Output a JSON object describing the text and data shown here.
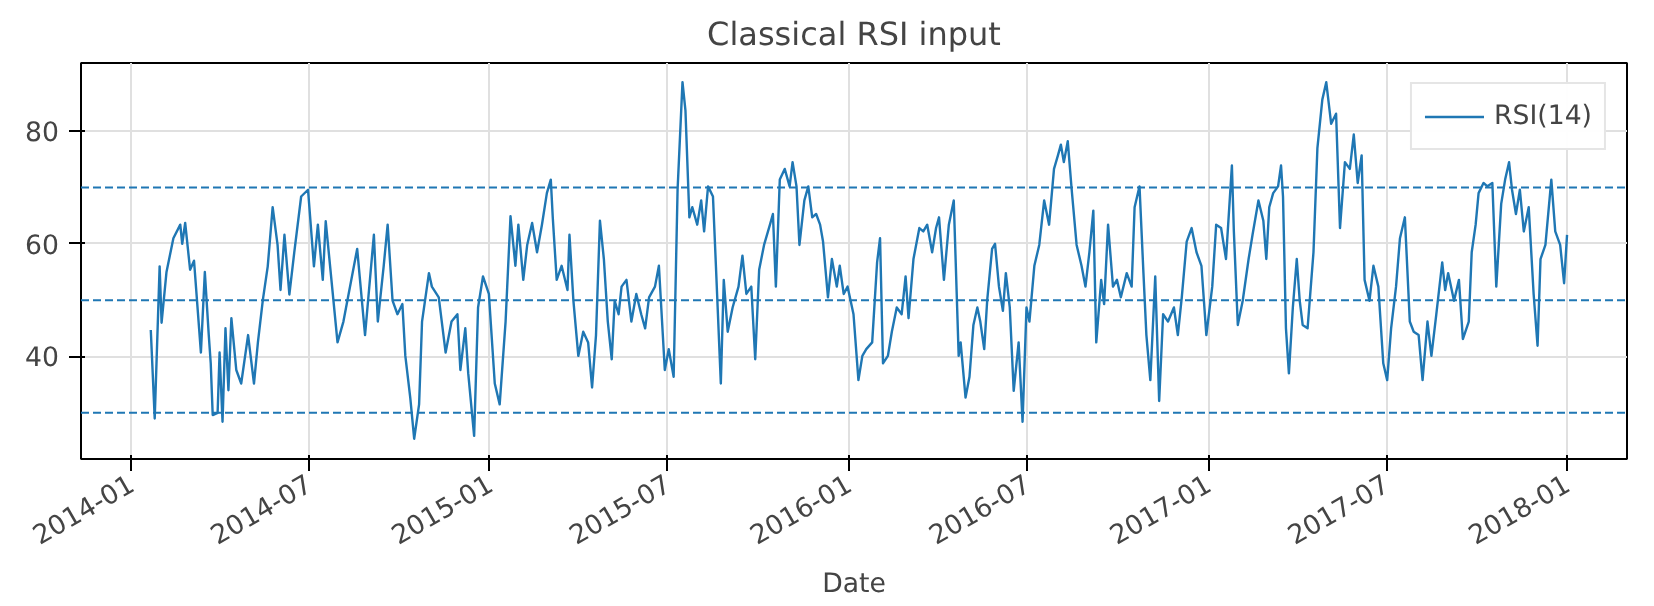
{
  "chart_data": {
    "type": "line",
    "title": "Classical RSI input",
    "xlabel": "Date",
    "xlim": [
      "2013-11-11",
      "2018-03-03"
    ],
    "ylim": [
      21.8,
      92.1
    ],
    "xticks": [
      "2014-01",
      "2014-07",
      "2015-01",
      "2015-07",
      "2016-01",
      "2016-07",
      "2017-01",
      "2017-07",
      "2018-01"
    ],
    "yticks": [
      40,
      60,
      80
    ],
    "grid": true,
    "legend": "top right",
    "marker": "none",
    "line_style": "solid",
    "ref_lines": [
      {
        "axis": "y",
        "value": 30,
        "color": "#1f77b4",
        "line_style": "dashed"
      },
      {
        "axis": "y",
        "value": 50,
        "color": "#1f77b4",
        "line_style": "dashed"
      },
      {
        "axis": "y",
        "value": 70,
        "color": "#1f77b4",
        "line_style": "dashed"
      }
    ],
    "series": [
      {
        "name": "RSI(14)",
        "color": "#1f77b4",
        "x": [
          "2014-01-21",
          "2014-01-25",
          "2014-01-30",
          "2014-02-01",
          "2014-02-06",
          "2014-02-13",
          "2014-02-20",
          "2014-02-22",
          "2014-02-25",
          "2014-03-02",
          "2014-03-06",
          "2014-03-13",
          "2014-03-17",
          "2014-03-21",
          "2014-03-23",
          "2014-03-25",
          "2014-03-30",
          "2014-04-01",
          "2014-04-04",
          "2014-04-07",
          "2014-04-10",
          "2014-04-13",
          "2014-04-18",
          "2014-04-23",
          "2014-04-30",
          "2014-05-06",
          "2014-05-10",
          "2014-05-15",
          "2014-05-20",
          "2014-05-25",
          "2014-05-30",
          "2014-06-02",
          "2014-06-06",
          "2014-06-11",
          "2014-06-16",
          "2014-06-23",
          "2014-06-30",
          "2014-07-06",
          "2014-07-10",
          "2014-07-15",
          "2014-07-18",
          "2014-07-30",
          "2014-08-05",
          "2014-08-19",
          "2014-08-27",
          "2014-09-05",
          "2014-09-09",
          "2014-09-15",
          "2014-09-19",
          "2014-09-24",
          "2014-09-29",
          "2014-10-04",
          "2014-10-07",
          "2014-10-12",
          "2014-10-16",
          "2014-10-21",
          "2014-10-24",
          "2014-10-31",
          "2014-11-03",
          "2014-11-10",
          "2014-11-17",
          "2014-11-23",
          "2014-11-29",
          "2014-12-02",
          "2014-12-07",
          "2014-12-10",
          "2014-12-16",
          "2014-12-20",
          "2014-12-25",
          "2014-12-31",
          "2015-01-06",
          "2015-01-11",
          "2015-01-17",
          "2015-01-22",
          "2015-01-27",
          "2015-01-30",
          "2015-02-04",
          "2015-02-08",
          "2015-02-13",
          "2015-02-18",
          "2015-02-23",
          "2015-02-28",
          "2015-03-04",
          "2015-03-06",
          "2015-03-10",
          "2015-03-15",
          "2015-03-21",
          "2015-03-23",
          "2015-03-27",
          "2015-04-01",
          "2015-04-06",
          "2015-04-11",
          "2015-04-15",
          "2015-04-19",
          "2015-04-23",
          "2015-04-27",
          "2015-05-01",
          "2015-05-05",
          "2015-05-08",
          "2015-05-12",
          "2015-05-15",
          "2015-05-20",
          "2015-05-25",
          "2015-05-30",
          "2015-06-04",
          "2015-06-08",
          "2015-06-12",
          "2015-06-18",
          "2015-06-22",
          "2015-06-28",
          "2015-07-02",
          "2015-07-07",
          "2015-07-11",
          "2015-07-16",
          "2015-07-19",
          "2015-07-23",
          "2015-07-26",
          "2015-07-31",
          "2015-08-04",
          "2015-08-07",
          "2015-08-11",
          "2015-08-16",
          "2015-08-19",
          "2015-08-24",
          "2015-08-27",
          "2015-08-31",
          "2015-09-05",
          "2015-09-11",
          "2015-09-15",
          "2015-09-19",
          "2015-09-24",
          "2015-09-28",
          "2015-10-02",
          "2015-10-07",
          "2015-10-13",
          "2015-10-16",
          "2015-10-19",
          "2015-10-23",
          "2015-10-28",
          "2015-11-02",
          "2015-11-05",
          "2015-11-09",
          "2015-11-12",
          "2015-11-17",
          "2015-11-21",
          "2015-11-25",
          "2015-11-29",
          "2015-12-03",
          "2015-12-06",
          "2015-12-11",
          "2015-12-15",
          "2015-12-20",
          "2015-12-23",
          "2015-12-27",
          "2015-12-31",
          "2016-01-06",
          "2016-01-11",
          "2016-01-15",
          "2016-01-19",
          "2016-01-25",
          "2016-01-30",
          "2016-02-02",
          "2016-02-05",
          "2016-02-10",
          "2016-02-14",
          "2016-02-19",
          "2016-02-24",
          "2016-02-28",
          "2016-03-02",
          "2016-03-07",
          "2016-03-13",
          "2016-03-17",
          "2016-03-21",
          "2016-03-26",
          "2016-03-30",
          "2016-04-02",
          "2016-04-07",
          "2016-04-12",
          "2016-04-17",
          "2016-04-22",
          "2016-04-24",
          "2016-04-29",
          "2016-05-03",
          "2016-05-07",
          "2016-05-11",
          "2016-05-14",
          "2016-05-18",
          "2016-05-21",
          "2016-05-26",
          "2016-05-29",
          "2016-06-02",
          "2016-06-06",
          "2016-06-09",
          "2016-06-13",
          "2016-06-17",
          "2016-06-22",
          "2016-06-26",
          "2016-06-30",
          "2016-07-03",
          "2016-07-08",
          "2016-07-13",
          "2016-07-18",
          "2016-07-23",
          "2016-07-28",
          "2016-08-01",
          "2016-08-04",
          "2016-08-07",
          "2016-08-11",
          "2016-08-15",
          "2016-08-20",
          "2016-08-25",
          "2016-08-29",
          "2016-09-02",
          "2016-09-06",
          "2016-09-09",
          "2016-09-14",
          "2016-09-17",
          "2016-09-21",
          "2016-09-26",
          "2016-09-30",
          "2016-10-04",
          "2016-10-10",
          "2016-10-15",
          "2016-10-18",
          "2016-10-23",
          "2016-10-27",
          "2016-10-30",
          "2016-11-03",
          "2016-11-08",
          "2016-11-12",
          "2016-11-16",
          "2016-11-21",
          "2016-11-27",
          "2016-12-01",
          "2016-12-05",
          "2016-12-10",
          "2016-12-15",
          "2016-12-20",
          "2016-12-25",
          "2016-12-30",
          "2017-01-05",
          "2017-01-09",
          "2017-01-14",
          "2017-01-19",
          "2017-01-25",
          "2017-01-27",
          "2017-01-31",
          "2017-02-05",
          "2017-02-11",
          "2017-02-15",
          "2017-02-21",
          "2017-02-26",
          "2017-03-01",
          "2017-03-04",
          "2017-03-08",
          "2017-03-13",
          "2017-03-16",
          "2017-03-18",
          "2017-03-21",
          "2017-03-24",
          "2017-03-28",
          "2017-04-01",
          "2017-04-04",
          "2017-04-07",
          "2017-04-12",
          "2017-04-18",
          "2017-04-22",
          "2017-04-27",
          "2017-05-01",
          "2017-05-06",
          "2017-05-11",
          "2017-05-15",
          "2017-05-20",
          "2017-05-25",
          "2017-05-29",
          "2017-06-02",
          "2017-06-06",
          "2017-06-09",
          "2017-06-14",
          "2017-06-18",
          "2017-06-23",
          "2017-06-28",
          "2017-07-02",
          "2017-07-06",
          "2017-07-11",
          "2017-07-15",
          "2017-07-20",
          "2017-07-25",
          "2017-07-29",
          "2017-08-03",
          "2017-08-07",
          "2017-08-12",
          "2017-08-16",
          "2017-08-21",
          "2017-08-27",
          "2017-08-30",
          "2017-09-02",
          "2017-09-08",
          "2017-09-13",
          "2017-09-17",
          "2017-09-23",
          "2017-09-26",
          "2017-09-30",
          "2017-10-03",
          "2017-10-08",
          "2017-10-12",
          "2017-10-17",
          "2017-10-21",
          "2017-10-26",
          "2017-10-30",
          "2017-11-03",
          "2017-11-06",
          "2017-11-10",
          "2017-11-14",
          "2017-11-18",
          "2017-11-23",
          "2017-11-28",
          "2017-12-02",
          "2017-12-05",
          "2017-12-10",
          "2017-12-16",
          "2017-12-20",
          "2017-12-25",
          "2017-12-29",
          "2018-01-01"
        ],
        "values": [
          44.7,
          29,
          56,
          46,
          55,
          61,
          63.4,
          60,
          63.7,
          55.4,
          57,
          40.7,
          55,
          43.8,
          38.8,
          29.6,
          30,
          40.7,
          28.4,
          45,
          34,
          46.8,
          37.6,
          35.2,
          43.8,
          35.2,
          42.5,
          50,
          56,
          66.5,
          59.8,
          51.8,
          61.6,
          51,
          58.5,
          68.4,
          69.6,
          56,
          63.4,
          53.6,
          64,
          42.5,
          46.2,
          59.1,
          43.8,
          61.6,
          46.2,
          56.1,
          63.4,
          49.9,
          47.5,
          49.3,
          40.1,
          32.7,
          25.4,
          31.5,
          46.2,
          54.8,
          52.4,
          50.5,
          40.7,
          46.2,
          47.5,
          37.6,
          45,
          37,
          25.9,
          48.7,
          54.2,
          51.1,
          35.2,
          31.5,
          46.2,
          64.9,
          56.1,
          63.4,
          53.6,
          59.8,
          63.7,
          58.5,
          63.4,
          69,
          71.4,
          64.7,
          53.6,
          56.1,
          51.8,
          61.6,
          49.9,
          40.1,
          44.4,
          42.5,
          34.5,
          43.8,
          64.1,
          57.3,
          46.2,
          39.5,
          49.9,
          47.5,
          52.4,
          53.6,
          46.2,
          51.1,
          47.5,
          45,
          50.5,
          52.4,
          56.1,
          37.6,
          41.3,
          36.4,
          69.6,
          88.7,
          83.7,
          64.7,
          66.5,
          63.4,
          67.7,
          62.2,
          70.2,
          68.4,
          56.1,
          35.2,
          53.6,
          44.4,
          48.7,
          52.4,
          57.9,
          51.1,
          52.4,
          39.5,
          55.4,
          59.8,
          63.4,
          65.3,
          52.4,
          71.4,
          73.3,
          70.2,
          74.5,
          70.2,
          59.8,
          67.7,
          70.2,
          64.7,
          65.3,
          63.4,
          60.4,
          50.5,
          57.3,
          52.4,
          56.1,
          51.1,
          52.4,
          47.5,
          35.8,
          40.1,
          41.3,
          42.5,
          56.7,
          61,
          38.8,
          40.1,
          44.4,
          48.7,
          47.5,
          54.2,
          46.8,
          57.3,
          62.8,
          62.2,
          63.4,
          58.5,
          62.8,
          64.7,
          53.6,
          63.4,
          67.7,
          40.1,
          42.5,
          32.7,
          36.4,
          45.6,
          48.7,
          46.2,
          41.3,
          49.9,
          59.1,
          60,
          52.4,
          48.1,
          54.8,
          48.7,
          33.9,
          42.5,
          28.4,
          48.7,
          46.2,
          56.1,
          59.8,
          67.7,
          63.4,
          73.3,
          75.7,
          77.6,
          74.5,
          78.2,
          69.6,
          59.8,
          56.1,
          52.4,
          58.5,
          65.9,
          42.5,
          53.6,
          49.3,
          63.4,
          52.4,
          53.6,
          50.5,
          54.8,
          52.4,
          66.5,
          70.2,
          54.8,
          43.8,
          35.8,
          54.2,
          32.1,
          47.5,
          46.2,
          48.7,
          43.8,
          50.5,
          60.4,
          62.8,
          58.5,
          56.1,
          43.8,
          52.4,
          63.4,
          62.8,
          57.3,
          73.9,
          62.2,
          45.6,
          49.9,
          57.3,
          61.6,
          67.7,
          64.1,
          57.3,
          66.5,
          69,
          70.2,
          73.9,
          68.4,
          45,
          37,
          48.7,
          57.3,
          49.9,
          45.6,
          45,
          58.5,
          77,
          85.6,
          88.7,
          81.3,
          83.1,
          62.8,
          74.5,
          73.3,
          79.4,
          70.8,
          75.7,
          53.6,
          49.9,
          56.1,
          52.4,
          38.8,
          35.8,
          45,
          52.4,
          61,
          64.7,
          46.2,
          44.4,
          43.8,
          35.8,
          46.2,
          40.1,
          47.5,
          56.7,
          51.8,
          54.8,
          49.9,
          53.6,
          43.1,
          46.2,
          58.5,
          63.4,
          69,
          70.8,
          70.2,
          70.8,
          52.4,
          67.1,
          71.4,
          74.5,
          69.6,
          65.3,
          69.6,
          62.2,
          66.5,
          51.1,
          41.9,
          57.3,
          59.8,
          71.4,
          62.2,
          59.8,
          53,
          61.6
        ]
      }
    ]
  }
}
